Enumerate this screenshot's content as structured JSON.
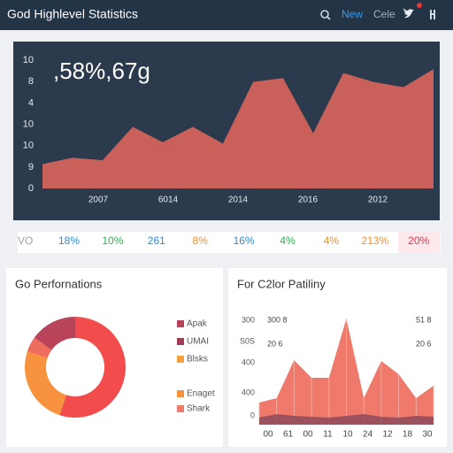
{
  "header": {
    "title": "God Highlevel Statistics",
    "links": [
      "New",
      "Cele"
    ]
  },
  "main_panel": {
    "headline": ",58%,67g",
    "y_labels": [
      "10",
      "8",
      "4",
      "10",
      "10",
      "9",
      "0"
    ],
    "x_labels": [
      "2007",
      "6014",
      "2014",
      "2016",
      "2012"
    ],
    "ylim": [
      0,
      10
    ],
    "color": "#c9605a",
    "values": [
      1.9,
      2.4,
      2.2,
      4.8,
      3.6,
      4.8,
      3.5,
      8.3,
      8.6,
      4.3,
      9.0,
      8.3,
      7.9,
      9.3
    ]
  },
  "stats_row": {
    "items": [
      {
        "label": "VO",
        "color": "#9aa3ad"
      },
      {
        "label": "18%",
        "color": "#2a8fd6"
      },
      {
        "label": "10%",
        "color": "#2fb24a"
      },
      {
        "label": "261",
        "color": "#2a8fd6"
      },
      {
        "label": "8%",
        "color": "#f0902a"
      },
      {
        "label": "16%",
        "color": "#2a8fd6"
      },
      {
        "label": "4%",
        "color": "#2fb24a"
      },
      {
        "label": "4%",
        "color": "#f0902a"
      },
      {
        "label": "213%",
        "color": "#f0902a"
      },
      {
        "label": "20%",
        "color": "#e0354a"
      }
    ]
  },
  "donut_card": {
    "title": "Go Perfornations",
    "values": [
      55,
      25,
      5,
      15
    ],
    "colors": [
      "#f24c4c",
      "#f7923f",
      "#ee6d5e",
      "#b9445a"
    ],
    "legend": [
      {
        "label": "Apak",
        "color": "#b9445a"
      },
      {
        "label": "UMAI",
        "color": "#9e3f55"
      },
      {
        "label": "Blsks",
        "color": "#f7a03f"
      },
      {
        "label": "Enaget",
        "color": "#f7923f"
      },
      {
        "label": "Shark",
        "color": "#ee7a6a"
      }
    ]
  },
  "area_card": {
    "title": "For C2lor Patiliny",
    "y_labels": [
      "300",
      "S0S",
      "400",
      "400",
      "0"
    ],
    "inner_labels": [
      "300 8",
      "20 6",
      "51 8",
      "20 6"
    ],
    "x_labels": [
      "00",
      "61",
      "00",
      "11",
      "10",
      "24",
      "12",
      "18",
      "30"
    ],
    "ylim": [
      0,
      130
    ],
    "series": [
      {
        "color": "#ef7a6c",
        "values": [
          25,
          30,
          73,
          53,
          53,
          120,
          30,
          72,
          57,
          30,
          44
        ]
      },
      {
        "color": "#8e4a5b",
        "values": [
          8,
          12,
          10,
          9,
          8,
          10,
          12,
          9,
          8,
          10,
          9
        ]
      }
    ]
  }
}
